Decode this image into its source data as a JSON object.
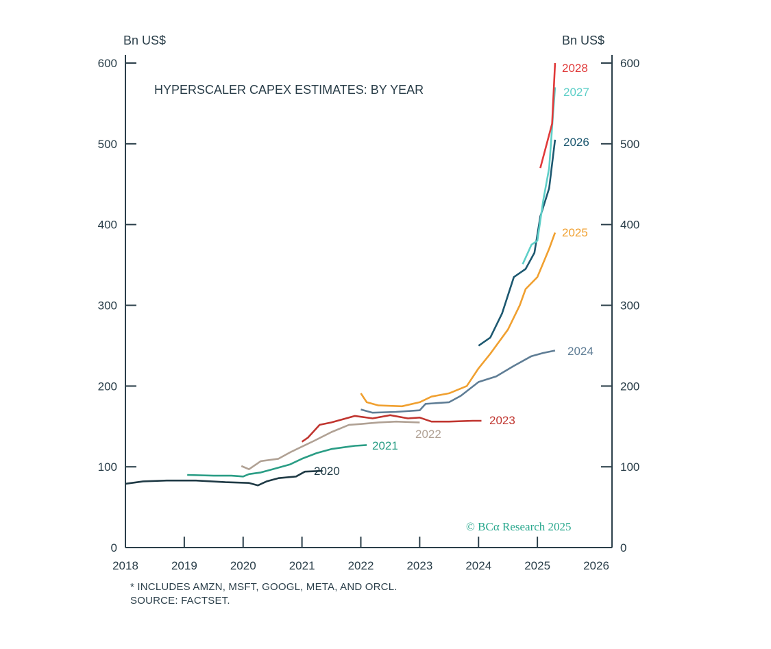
{
  "chart_data": {
    "type": "line",
    "title": "HYPERSCALER CAPEX ESTIMATES: BY YEAR",
    "ylabel_left": "Bn US$",
    "ylabel_right": "Bn US$",
    "ylim": [
      0,
      600
    ],
    "xlim": [
      2018,
      2026
    ],
    "yticks": [
      0,
      100,
      200,
      300,
      400,
      500,
      600
    ],
    "xticks": [
      2018,
      2019,
      2020,
      2021,
      2022,
      2023,
      2024,
      2025,
      2026
    ],
    "grid": false,
    "series": [
      {
        "name": "2020",
        "color": "#1f3a45",
        "x": [
          2018.0,
          2018.3,
          2018.7,
          2019.2,
          2019.7,
          2020.1,
          2020.25,
          2020.4,
          2020.6,
          2020.9,
          2021.05,
          2021.35
        ],
        "y": [
          79,
          82,
          83,
          83,
          81,
          80,
          77,
          82,
          86,
          88,
          94,
          95
        ]
      },
      {
        "name": "2021",
        "color": "#2a9d85",
        "x": [
          2019.05,
          2019.5,
          2019.8,
          2020.0,
          2020.1,
          2020.3,
          2020.5,
          2020.8,
          2021.0,
          2021.25,
          2021.5,
          2021.9,
          2022.1
        ],
        "y": [
          90,
          89,
          89,
          88,
          91,
          93,
          97,
          103,
          110,
          117,
          122,
          126,
          127
        ]
      },
      {
        "name": "2022",
        "color": "#b0a194",
        "x": [
          2019.97,
          2020.1,
          2020.3,
          2020.6,
          2020.8,
          2021.0,
          2021.2,
          2021.5,
          2021.8,
          2022.0,
          2022.3,
          2022.6,
          2023.0
        ],
        "y": [
          101,
          97,
          107,
          110,
          118,
          125,
          132,
          143,
          152,
          153,
          155,
          156,
          155
        ]
      },
      {
        "name": "2023",
        "color": "#c0352f",
        "x": [
          2021.0,
          2021.1,
          2021.3,
          2021.5,
          2021.9,
          2022.2,
          2022.5,
          2022.8,
          2023.0,
          2023.2,
          2023.5,
          2023.9,
          2024.05
        ],
        "y": [
          131,
          136,
          152,
          155,
          163,
          160,
          164,
          160,
          161,
          156,
          156,
          157,
          157
        ]
      },
      {
        "name": "2024",
        "color": "#5f7d95",
        "x": [
          2022.0,
          2022.2,
          2022.6,
          2023.0,
          2023.1,
          2023.5,
          2023.7,
          2024.0,
          2024.3,
          2024.6,
          2024.9,
          2025.1,
          2025.3
        ],
        "y": [
          171,
          167,
          168,
          170,
          178,
          180,
          188,
          205,
          212,
          225,
          237,
          241,
          244
        ]
      },
      {
        "name": "2025",
        "color": "#f0a030",
        "x": [
          2022.0,
          2022.1,
          2022.3,
          2022.7,
          2023.0,
          2023.2,
          2023.5,
          2023.8,
          2024.0,
          2024.2,
          2024.5,
          2024.7,
          2024.8,
          2025.0,
          2025.2,
          2025.3
        ],
        "y": [
          191,
          180,
          176,
          175,
          180,
          187,
          191,
          200,
          222,
          240,
          270,
          300,
          320,
          335,
          370,
          390
        ]
      },
      {
        "name": "2026",
        "color": "#1d5870",
        "x": [
          2024.0,
          2024.2,
          2024.4,
          2024.6,
          2024.8,
          2024.95,
          2025.05,
          2025.2,
          2025.3
        ],
        "y": [
          250,
          260,
          290,
          335,
          345,
          365,
          410,
          445,
          505
        ]
      },
      {
        "name": "2027",
        "color": "#5ecfc8",
        "x": [
          2024.75,
          2024.9,
          2025.0,
          2025.1,
          2025.2,
          2025.27,
          2025.3
        ],
        "y": [
          351,
          375,
          380,
          430,
          470,
          540,
          570
        ]
      },
      {
        "name": "2028",
        "color": "#e03a3a",
        "x": [
          2025.05,
          2025.25,
          2025.3
        ],
        "y": [
          470,
          525,
          600
        ]
      }
    ],
    "axis_color": "#2b3f4a"
  },
  "footnote": "* INCLUDES AMZN, MSFT, GOOGL, META, AND ORCL.",
  "source": "SOURCE: FACTSET.",
  "watermark": "© BCα Research 2025"
}
